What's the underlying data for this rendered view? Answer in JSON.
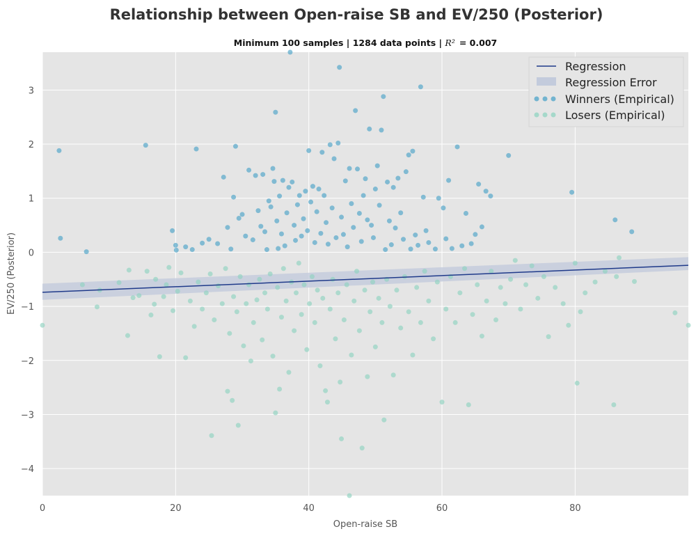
{
  "chart_data": {
    "type": "scatter",
    "title": "Relationship between Open-raise SB and EV/250 (Posterior)",
    "subtitle_prefix": "Minimum 100 samples | 1284 data points | ",
    "subtitle_r2_symbol": "R²",
    "subtitle_r2_value": "=  0.007",
    "xlabel": "Open-raise SB",
    "ylabel": "EV/250 (Posterior)",
    "xlim": [
      0,
      97
    ],
    "ylim": [
      -4.5,
      3.7
    ],
    "xticks": [
      0,
      20,
      40,
      60,
      80
    ],
    "yticks": [
      -4,
      -3,
      -2,
      -1,
      0,
      1,
      2,
      3
    ],
    "ytick_labels": [
      "−4",
      "−3",
      "−2",
      "−1",
      "0",
      "1",
      "2",
      "3"
    ],
    "grid": true,
    "legend_position": "top-right",
    "regression": {
      "name": "Regression",
      "color": "#1f3a8a",
      "x": [
        0,
        97
      ],
      "y": [
        -0.74,
        -0.24
      ],
      "error_band": {
        "name": "Regression Error",
        "color": "#c3cbdc",
        "lower": [
          -0.88,
          -0.33
        ],
        "upper": [
          -0.58,
          -0.09
        ]
      }
    },
    "series": [
      {
        "name": "Winners (Empirical)",
        "color": "#4ba3c8",
        "points": [
          [
            2.5,
            1.88
          ],
          [
            2.7,
            0.26
          ],
          [
            6.6,
            0.01
          ],
          [
            15.5,
            1.98
          ],
          [
            19.5,
            0.4
          ],
          [
            20,
            0.13
          ],
          [
            20.1,
            0.04
          ],
          [
            21.5,
            0.1
          ],
          [
            22.5,
            0.05
          ],
          [
            23.1,
            1.91
          ],
          [
            24,
            0.17
          ],
          [
            25,
            0.24
          ],
          [
            26.3,
            0.16
          ],
          [
            27.2,
            1.39
          ],
          [
            27.8,
            0.46
          ],
          [
            28.3,
            0.06
          ],
          [
            28.7,
            1.02
          ],
          [
            29,
            1.96
          ],
          [
            29.5,
            0.63
          ],
          [
            30,
            0.7
          ],
          [
            30.5,
            0.3
          ],
          [
            31,
            1.52
          ],
          [
            31.6,
            0.23
          ],
          [
            32,
            1.42
          ],
          [
            32.4,
            0.77
          ],
          [
            32.8,
            0.48
          ],
          [
            33.1,
            1.44
          ],
          [
            33.4,
            0.38
          ],
          [
            33.7,
            0.05
          ],
          [
            34,
            0.95
          ],
          [
            34.3,
            0.84
          ],
          [
            34.6,
            1.55
          ],
          [
            34.8,
            1.31
          ],
          [
            35,
            2.59
          ],
          [
            35.2,
            0.58
          ],
          [
            35.4,
            0.07
          ],
          [
            35.6,
            1.04
          ],
          [
            35.9,
            0.34
          ],
          [
            36.1,
            1.33
          ],
          [
            36.4,
            0.12
          ],
          [
            36.7,
            0.73
          ],
          [
            37,
            1.2
          ],
          [
            37.2,
            3.7
          ],
          [
            37.5,
            1.3
          ],
          [
            37.8,
            0.5
          ],
          [
            38,
            0.22
          ],
          [
            38.3,
            0.88
          ],
          [
            38.6,
            1.05
          ],
          [
            38.9,
            0.3
          ],
          [
            39.2,
            0.62
          ],
          [
            39.5,
            1.13
          ],
          [
            39.8,
            0.4
          ],
          [
            40,
            1.88
          ],
          [
            40.3,
            0.93
          ],
          [
            40.6,
            1.22
          ],
          [
            40.9,
            0.18
          ],
          [
            41.2,
            0.75
          ],
          [
            41.5,
            1.17
          ],
          [
            41.8,
            0.35
          ],
          [
            42,
            1.85
          ],
          [
            42.3,
            1.05
          ],
          [
            42.6,
            0.55
          ],
          [
            42.9,
            0.15
          ],
          [
            43.2,
            1.99
          ],
          [
            43.5,
            0.82
          ],
          [
            43.8,
            1.73
          ],
          [
            44.1,
            0.27
          ],
          [
            44.4,
            2.02
          ],
          [
            44.6,
            3.42
          ],
          [
            44.9,
            0.65
          ],
          [
            45.2,
            0.33
          ],
          [
            45.5,
            1.32
          ],
          [
            45.8,
            0.1
          ],
          [
            46.1,
            1.55
          ],
          [
            46.4,
            0.9
          ],
          [
            46.7,
            0.46
          ],
          [
            47,
            2.62
          ],
          [
            47.3,
            1.54
          ],
          [
            47.6,
            0.72
          ],
          [
            47.9,
            0.2
          ],
          [
            48.2,
            1.05
          ],
          [
            48.5,
            1.36
          ],
          [
            48.8,
            0.6
          ],
          [
            49.1,
            2.28
          ],
          [
            49.4,
            0.5
          ],
          [
            49.7,
            0.27
          ],
          [
            50,
            1.17
          ],
          [
            50.3,
            1.6
          ],
          [
            50.6,
            0.87
          ],
          [
            50.9,
            2.26
          ],
          [
            51.2,
            2.88
          ],
          [
            51.5,
            0.05
          ],
          [
            51.8,
            1.3
          ],
          [
            52.1,
            0.58
          ],
          [
            52.4,
            0.14
          ],
          [
            52.7,
            1.2
          ],
          [
            53,
            0.45
          ],
          [
            53.4,
            1.37
          ],
          [
            53.8,
            0.73
          ],
          [
            54.2,
            0.24
          ],
          [
            54.6,
            1.49
          ],
          [
            55,
            1.8
          ],
          [
            55.3,
            0.06
          ],
          [
            55.6,
            1.87
          ],
          [
            56,
            0.32
          ],
          [
            56.4,
            0.13
          ],
          [
            56.8,
            3.06
          ],
          [
            57.2,
            1.02
          ],
          [
            57.6,
            0.4
          ],
          [
            58,
            0.18
          ],
          [
            59,
            0.06
          ],
          [
            59.5,
            1.0
          ],
          [
            60.2,
            0.82
          ],
          [
            60.6,
            0.25
          ],
          [
            61,
            1.33
          ],
          [
            61.5,
            0.07
          ],
          [
            62.3,
            1.95
          ],
          [
            63,
            0.12
          ],
          [
            63.6,
            0.72
          ],
          [
            64.4,
            0.16
          ],
          [
            65,
            0.33
          ],
          [
            65.5,
            1.26
          ],
          [
            66,
            0.47
          ],
          [
            66.6,
            1.13
          ],
          [
            67.3,
            1.04
          ],
          [
            70,
            1.79
          ],
          [
            79.5,
            1.11
          ],
          [
            86,
            0.6
          ],
          [
            88.5,
            0.38
          ]
        ]
      },
      {
        "name": "Losers (Empirical)",
        "color": "#8fd3c0",
        "points": [
          [
            0,
            -1.35
          ],
          [
            6,
            -0.6
          ],
          [
            8.2,
            -1.01
          ],
          [
            8.6,
            -0.7
          ],
          [
            11.5,
            -0.56
          ],
          [
            12.8,
            -1.54
          ],
          [
            13,
            -0.33
          ],
          [
            13.6,
            -0.84
          ],
          [
            14.5,
            -0.8
          ],
          [
            15.7,
            -0.35
          ],
          [
            16.3,
            -1.16
          ],
          [
            16.8,
            -0.96
          ],
          [
            17,
            -0.5
          ],
          [
            17.6,
            -1.93
          ],
          [
            18.2,
            -0.82
          ],
          [
            18.6,
            -0.6
          ],
          [
            19,
            -0.28
          ],
          [
            19.6,
            -1.08
          ],
          [
            20.3,
            -0.72
          ],
          [
            20.8,
            -0.38
          ],
          [
            21.5,
            -1.95
          ],
          [
            22.2,
            -0.9
          ],
          [
            22.8,
            -1.37
          ],
          [
            23.4,
            -0.55
          ],
          [
            24,
            -1.05
          ],
          [
            24.6,
            -0.75
          ],
          [
            25.2,
            -0.4
          ],
          [
            25.4,
            -3.39
          ],
          [
            25.8,
            -1.25
          ],
          [
            26.4,
            -0.62
          ],
          [
            27,
            -0.95
          ],
          [
            27.5,
            -0.3
          ],
          [
            27.8,
            -2.57
          ],
          [
            28.1,
            -1.5
          ],
          [
            28.5,
            -2.74
          ],
          [
            28.7,
            -0.82
          ],
          [
            29.2,
            -1.1
          ],
          [
            29.4,
            -3.2
          ],
          [
            29.7,
            -0.45
          ],
          [
            30.2,
            -1.73
          ],
          [
            30.6,
            -0.95
          ],
          [
            31,
            -0.6
          ],
          [
            31.3,
            -2.01
          ],
          [
            31.7,
            -1.3
          ],
          [
            32.2,
            -0.88
          ],
          [
            32.6,
            -0.5
          ],
          [
            33,
            -1.62
          ],
          [
            33.4,
            -0.75
          ],
          [
            33.8,
            -1.05
          ],
          [
            34.2,
            -0.4
          ],
          [
            34.6,
            -1.92
          ],
          [
            35,
            -2.97
          ],
          [
            35.3,
            -0.65
          ],
          [
            35.6,
            -2.53
          ],
          [
            35.9,
            -1.2
          ],
          [
            36.2,
            -0.3
          ],
          [
            36.6,
            -0.9
          ],
          [
            37,
            -2.22
          ],
          [
            37.4,
            -0.55
          ],
          [
            37.8,
            -1.45
          ],
          [
            38.1,
            -0.75
          ],
          [
            38.5,
            -0.2
          ],
          [
            38.9,
            -1.15
          ],
          [
            39.3,
            -0.6
          ],
          [
            39.7,
            -1.8
          ],
          [
            40.1,
            -0.95
          ],
          [
            40.5,
            -0.45
          ],
          [
            40.9,
            -1.3
          ],
          [
            41.3,
            -0.7
          ],
          [
            41.7,
            -2.1
          ],
          [
            42.1,
            -0.85
          ],
          [
            42.5,
            -2.56
          ],
          [
            42.8,
            -2.77
          ],
          [
            43.2,
            -1.05
          ],
          [
            43.6,
            -0.5
          ],
          [
            44,
            -1.6
          ],
          [
            44.4,
            -0.75
          ],
          [
            44.7,
            -2.4
          ],
          [
            44.9,
            -3.45
          ],
          [
            45.3,
            -1.25
          ],
          [
            45.7,
            -0.6
          ],
          [
            46.1,
            -4.5
          ],
          [
            46.4,
            -1.9
          ],
          [
            46.8,
            -0.9
          ],
          [
            47.2,
            -0.35
          ],
          [
            47.6,
            -1.45
          ],
          [
            48,
            -3.62
          ],
          [
            48.4,
            -0.7
          ],
          [
            48.8,
            -2.3
          ],
          [
            49.2,
            -1.1
          ],
          [
            49.6,
            -0.55
          ],
          [
            50,
            -1.75
          ],
          [
            50.5,
            -0.85
          ],
          [
            51,
            -1.3
          ],
          [
            51.3,
            -3.1
          ],
          [
            51.7,
            -0.5
          ],
          [
            52.2,
            -1.0
          ],
          [
            52.7,
            -2.27
          ],
          [
            53.2,
            -0.7
          ],
          [
            53.8,
            -1.4
          ],
          [
            54.4,
            -0.45
          ],
          [
            55,
            -1.1
          ],
          [
            55.6,
            -1.9
          ],
          [
            56.2,
            -0.65
          ],
          [
            56.8,
            -1.3
          ],
          [
            57.4,
            -0.35
          ],
          [
            58,
            -0.9
          ],
          [
            58.7,
            -1.6
          ],
          [
            59.3,
            -0.55
          ],
          [
            60,
            -2.77
          ],
          [
            60.6,
            -1.05
          ],
          [
            61.3,
            -0.45
          ],
          [
            62,
            -1.3
          ],
          [
            62.7,
            -0.75
          ],
          [
            63.4,
            -0.3
          ],
          [
            64,
            -2.82
          ],
          [
            64.6,
            -1.15
          ],
          [
            65.3,
            -0.6
          ],
          [
            66,
            -1.55
          ],
          [
            66.7,
            -0.9
          ],
          [
            67.4,
            -0.35
          ],
          [
            68.1,
            -1.25
          ],
          [
            68.8,
            -0.65
          ],
          [
            69.5,
            -0.95
          ],
          [
            70.3,
            -0.5
          ],
          [
            71,
            -0.15
          ],
          [
            71.8,
            -1.05
          ],
          [
            72.6,
            -0.6
          ],
          [
            73.5,
            -0.25
          ],
          [
            74.4,
            -0.85
          ],
          [
            75.3,
            -0.45
          ],
          [
            76,
            -1.56
          ],
          [
            77,
            -0.65
          ],
          [
            78.2,
            -0.95
          ],
          [
            79,
            -1.35
          ],
          [
            80,
            -0.2
          ],
          [
            80.3,
            -2.42
          ],
          [
            80.8,
            -1.1
          ],
          [
            81.5,
            -0.75
          ],
          [
            83,
            -0.55
          ],
          [
            84.5,
            -0.35
          ],
          [
            85.8,
            -2.82
          ],
          [
            86.2,
            -0.45
          ],
          [
            86.6,
            -0.1
          ],
          [
            88.9,
            -0.54
          ],
          [
            95,
            -1.12
          ],
          [
            97,
            -1.35
          ]
        ]
      }
    ]
  }
}
